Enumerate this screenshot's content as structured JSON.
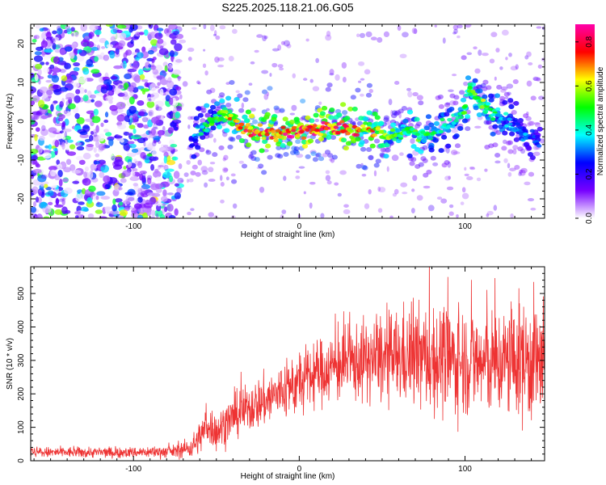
{
  "title": "S225.2025.118.21.06.G05",
  "chart_data": [
    {
      "type": "heatmap",
      "title": "S225.2025.118.21.06.G05",
      "xlabel": "Height of straight line (km)",
      "ylabel": "Frequency (Hz)",
      "xlim": [
        -162,
        148
      ],
      "ylim": [
        -25,
        25
      ],
      "x_ticks": [
        -100,
        0,
        100
      ],
      "x_tick_labels": [
        "-100",
        "0",
        "100"
      ],
      "y_ticks": [
        -20,
        -10,
        0,
        10,
        20
      ],
      "y_tick_labels": [
        "-20",
        "-10",
        "0",
        "10",
        "20"
      ],
      "colorbar": {
        "label": "Normalized spectral amplitude",
        "range": [
          0,
          0.88
        ],
        "ticks": [
          0.0,
          0.2,
          0.4,
          0.6,
          0.8
        ],
        "tick_labels": [
          "0.0",
          "0.2",
          "0.4",
          "0.6",
          "0.8"
        ],
        "colors": [
          "#ffffff",
          "#7700ff",
          "#0000ff",
          "#00ffff",
          "#00ff00",
          "#ffff00",
          "#ff0000",
          "#ff00aa"
        ]
      },
      "ridge": {
        "x": [
          -65,
          -60,
          -55,
          -50,
          -45,
          -40,
          -35,
          -30,
          -25,
          -20,
          -15,
          -10,
          -5,
          0,
          5,
          10,
          15,
          20,
          25,
          30,
          35,
          40,
          45,
          50,
          55,
          60,
          65,
          70,
          75,
          80,
          85,
          90,
          95,
          100,
          103,
          106,
          110,
          115,
          120,
          125,
          130,
          135,
          140,
          145
        ],
        "y": [
          -5,
          -2,
          -1,
          1,
          2,
          0.5,
          -1,
          -2.5,
          -3,
          -3,
          -3.5,
          -3,
          -2.5,
          -2.5,
          -2,
          -2,
          -1.5,
          -2,
          -2,
          -2,
          -2,
          -2,
          -2.5,
          -3,
          -3.5,
          -3,
          -3,
          -3.5,
          -3,
          -3,
          -2,
          -1,
          1,
          3,
          10,
          6,
          4,
          3,
          2,
          0,
          -2,
          -3,
          -4,
          -5
        ],
        "amplitude": [
          0.3,
          0.4,
          0.5,
          0.5,
          0.6,
          0.7,
          0.7,
          0.8,
          0.85,
          0.8,
          0.75,
          0.8,
          0.85,
          0.85,
          0.8,
          0.85,
          0.8,
          0.75,
          0.85,
          0.8,
          0.75,
          0.7,
          0.7,
          0.6,
          0.55,
          0.55,
          0.5,
          0.55,
          0.5,
          0.45,
          0.45,
          0.4,
          0.4,
          0.5,
          0.55,
          0.55,
          0.6,
          0.5,
          0.45,
          0.4,
          0.35,
          0.35,
          0.3,
          0.3
        ]
      },
      "noise_region": {
        "x": [
          -162,
          -72
        ],
        "amplitude": 0.2
      }
    },
    {
      "type": "line",
      "xlabel": "Height of straight line (km)",
      "ylabel": "SNR (10 * v/v)",
      "xlim": [
        -162,
        148
      ],
      "ylim": [
        0,
        580
      ],
      "x_ticks": [
        -100,
        0,
        100
      ],
      "x_tick_labels": [
        "-100",
        "0",
        "100"
      ],
      "y_ticks": [
        0,
        100,
        200,
        300,
        400,
        500
      ],
      "y_tick_labels": [
        "0",
        "100",
        "200",
        "300",
        "400",
        "500"
      ],
      "color": "#ee3333",
      "trend": {
        "x": [
          -162,
          -100,
          -75,
          -65,
          -60,
          -55,
          -50,
          -45,
          -40,
          -30,
          -20,
          -10,
          0,
          10,
          20,
          30,
          40,
          50,
          60,
          70,
          80,
          90,
          100,
          110,
          120,
          130,
          140,
          148
        ],
        "y": [
          25,
          25,
          28,
          40,
          70,
          110,
          85,
          110,
          130,
          160,
          180,
          210,
          230,
          260,
          280,
          290,
          300,
          300,
          310,
          310,
          305,
          300,
          300,
          290,
          290,
          300,
          300,
          290
        ],
        "spread": [
          10,
          10,
          12,
          20,
          30,
          40,
          35,
          40,
          40,
          45,
          50,
          55,
          60,
          60,
          65,
          70,
          75,
          80,
          90,
          95,
          100,
          100,
          100,
          100,
          100,
          110,
          120,
          120
        ]
      }
    }
  ]
}
